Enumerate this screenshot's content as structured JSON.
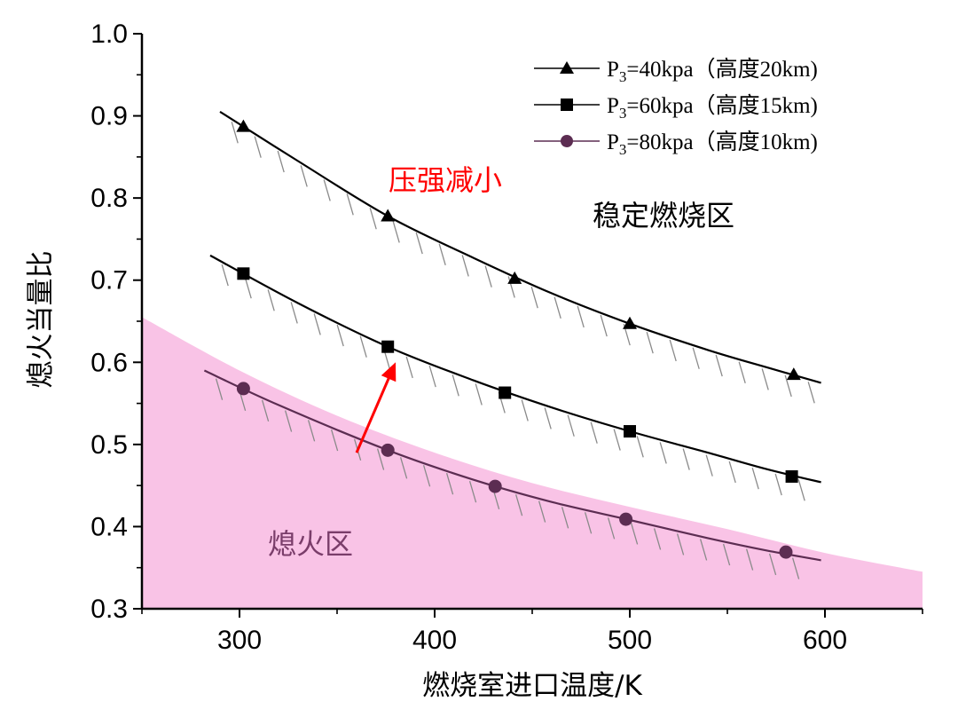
{
  "chart_data": {
    "type": "line",
    "xlabel": "燃烧室进口温度/K",
    "ylabel": "熄火当量比",
    "xlim": [
      250,
      650
    ],
    "ylim": [
      0.3,
      1.0
    ],
    "x_ticks": [
      300,
      400,
      500,
      600
    ],
    "y_ticks": [
      "0.3",
      "0.4",
      "0.5",
      "0.6",
      "0.7",
      "0.8",
      "0.9",
      "1.0"
    ],
    "grid": false,
    "legend_position": "top-right",
    "series": [
      {
        "name": "P3=40kpa（高度20km)",
        "legend": {
          "prefix": "P",
          "sub": "3",
          "suffix": "=40kpa（高度20km)"
        },
        "marker": "triangle",
        "color": "#000000",
        "x": [
          302,
          376,
          441,
          500,
          584
        ],
        "y": [
          0.887,
          0.778,
          0.702,
          0.647,
          0.585
        ],
        "fit_x": [
          290,
          330,
          376,
          420,
          460,
          500,
          540,
          570,
          598
        ],
        "fit_y": [
          0.905,
          0.845,
          0.778,
          0.727,
          0.684,
          0.647,
          0.615,
          0.594,
          0.575
        ]
      },
      {
        "name": "P3=60kpa（高度15km)",
        "legend": {
          "prefix": "P",
          "sub": "3",
          "suffix": "=60kpa（高度15km)"
        },
        "marker": "square",
        "color": "#000000",
        "x": [
          302,
          376,
          436,
          500,
          583
        ],
        "y": [
          0.708,
          0.619,
          0.563,
          0.516,
          0.461
        ],
        "fit_x": [
          285,
          330,
          376,
          420,
          460,
          500,
          540,
          570,
          598
        ],
        "fit_y": [
          0.73,
          0.672,
          0.619,
          0.578,
          0.545,
          0.516,
          0.49,
          0.47,
          0.454
        ]
      },
      {
        "name": "P3=80kpa（高度10km)",
        "legend": {
          "prefix": "P",
          "sub": "3",
          "suffix": "=80kpa（高度10km)"
        },
        "marker": "circle",
        "color": "#5c2d52",
        "x": [
          302,
          376,
          431,
          498,
          580
        ],
        "y": [
          0.568,
          0.493,
          0.449,
          0.409,
          0.369
        ],
        "fit_x": [
          282,
          320,
          376,
          420,
          460,
          500,
          540,
          570,
          598
        ],
        "fit_y": [
          0.59,
          0.548,
          0.493,
          0.457,
          0.43,
          0.408,
          0.386,
          0.371,
          0.359
        ]
      }
    ],
    "region": {
      "label": "熄火区",
      "color": "#f9c3e6",
      "label_color": "#7a3d6a",
      "boundary_x": [
        250,
        300,
        350,
        400,
        450,
        500,
        550,
        600,
        650
      ],
      "boundary_y": [
        0.655,
        0.59,
        0.535,
        0.49,
        0.453,
        0.424,
        0.397,
        0.368,
        0.345
      ]
    },
    "annotations": [
      {
        "id": "stable",
        "text": "稳定燃烧区",
        "color": "#000000"
      },
      {
        "id": "pressure",
        "text": "压强减小",
        "color": "#ff0000"
      }
    ],
    "arrow": {
      "color": "#ff0000",
      "from": [
        360,
        0.49
      ],
      "to": [
        380,
        0.6
      ]
    }
  }
}
